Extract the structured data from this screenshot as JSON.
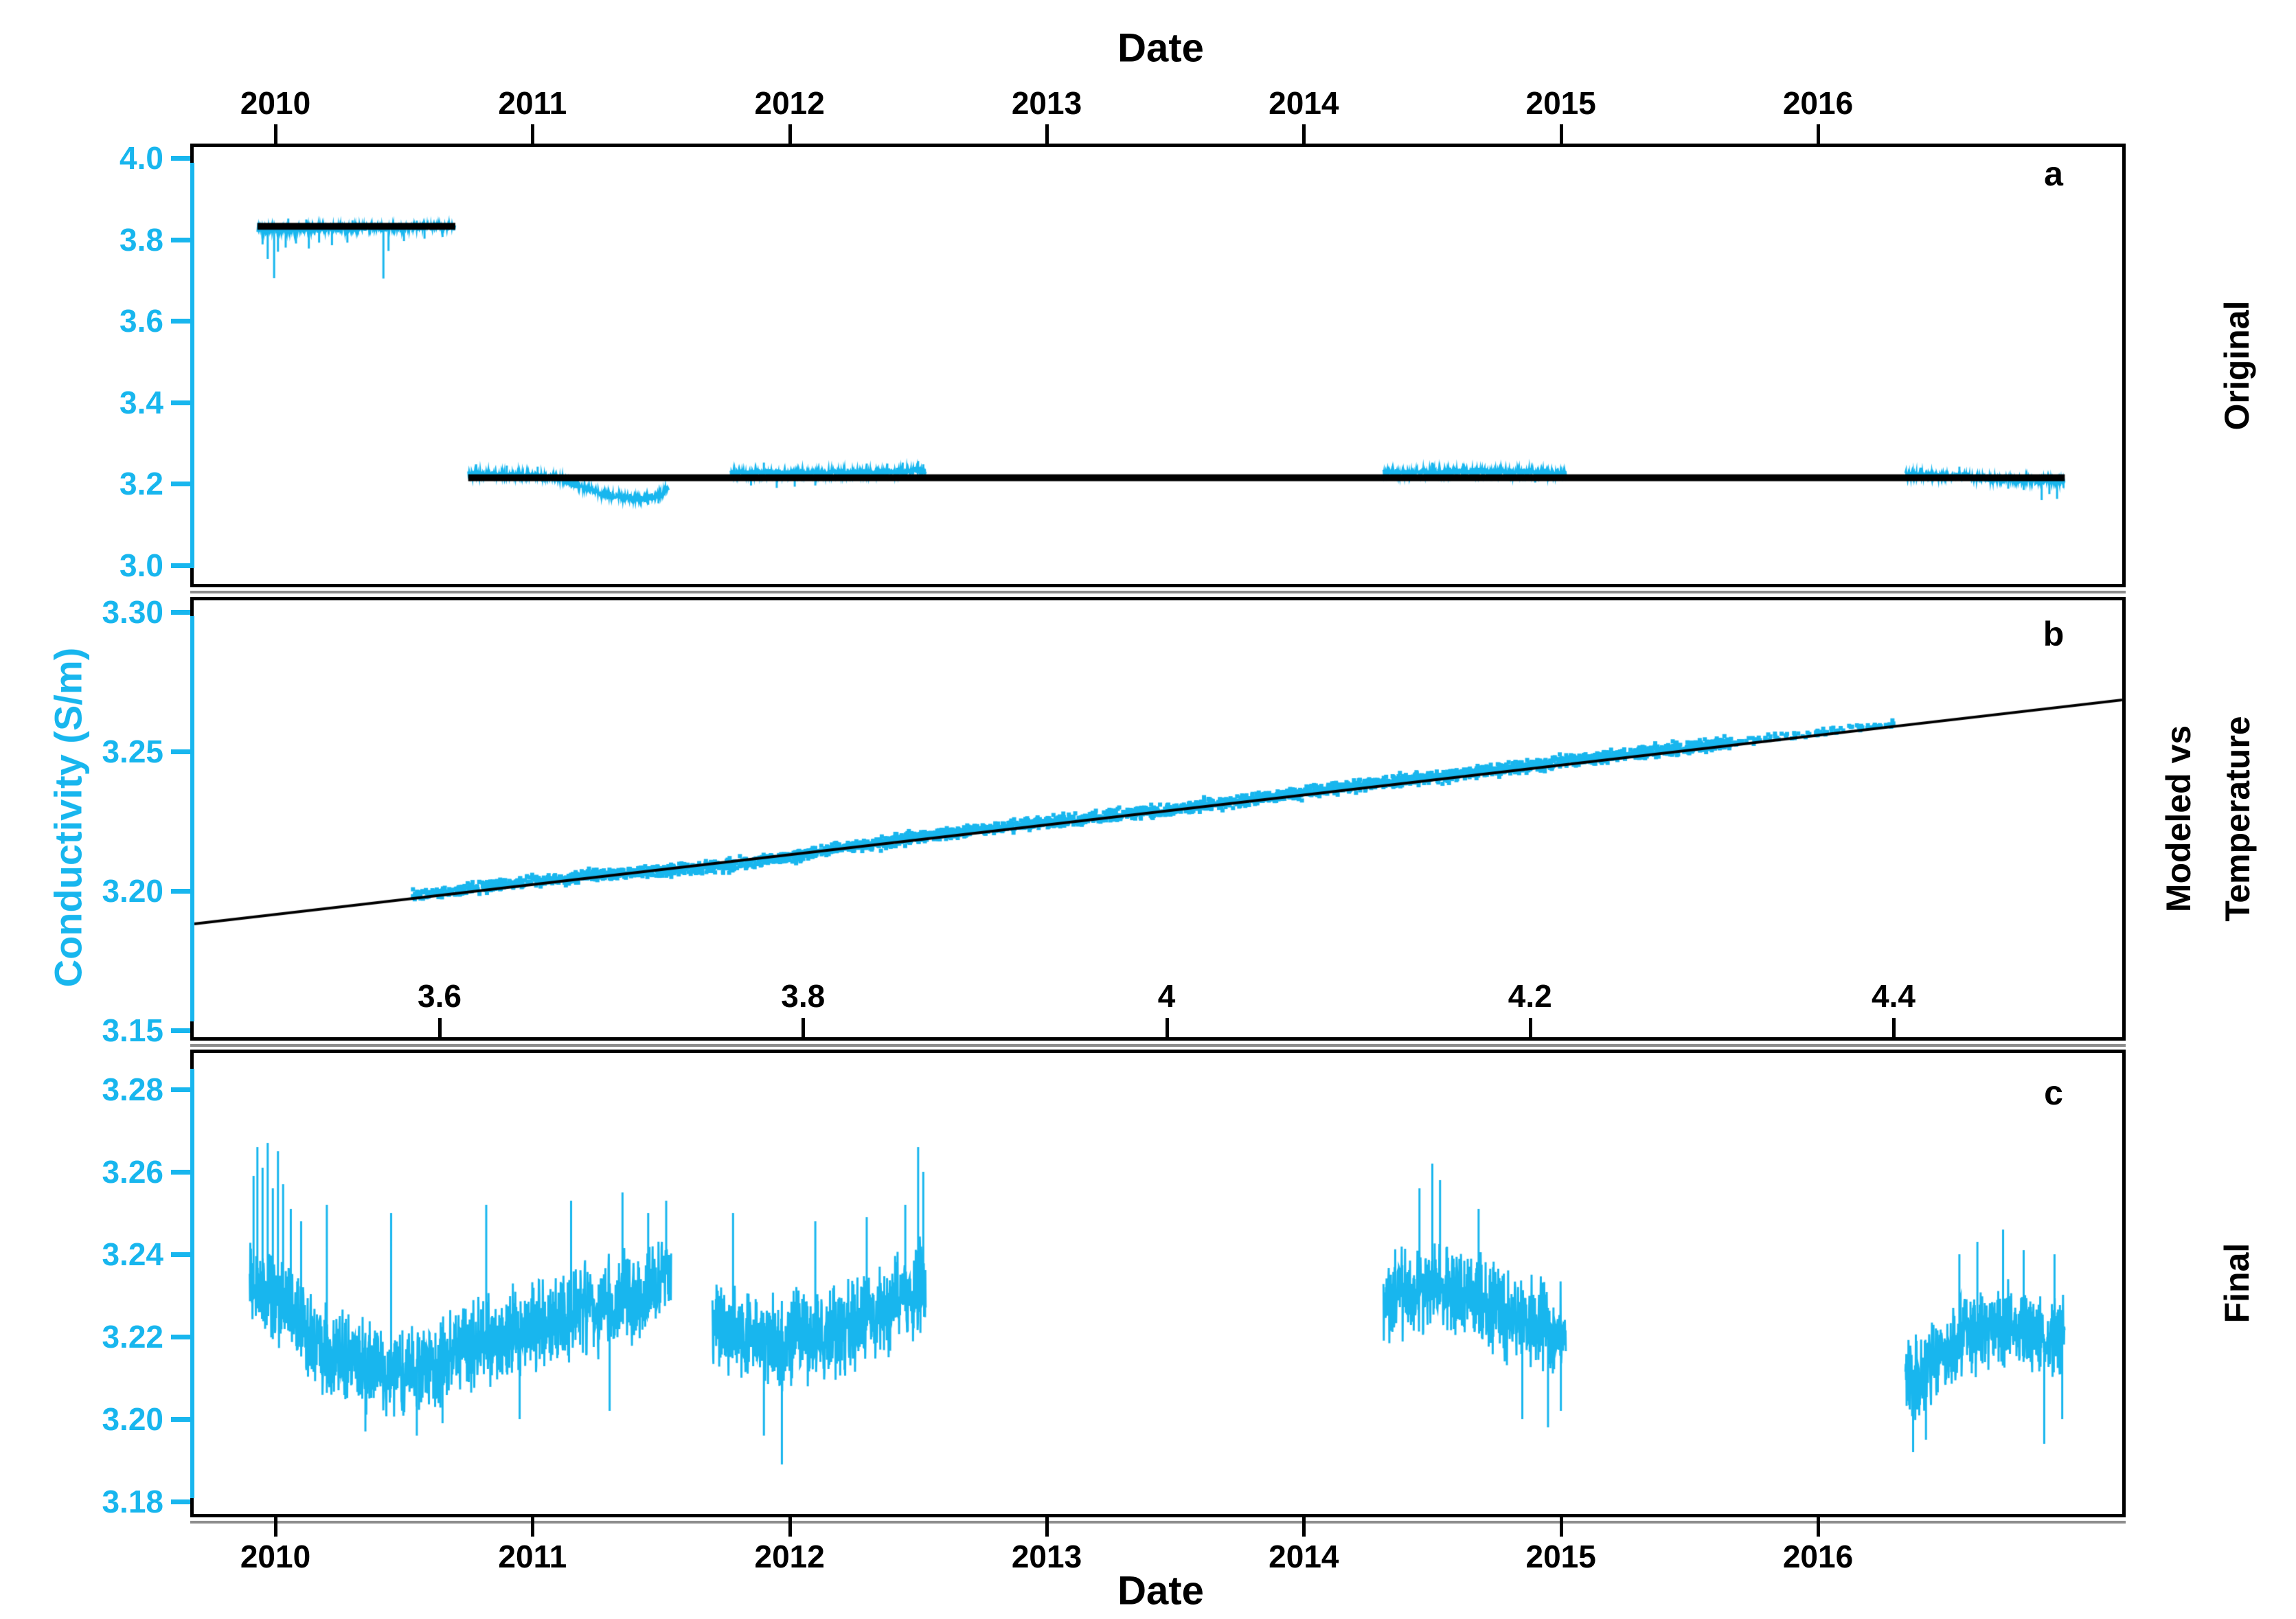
{
  "figure": {
    "title_top": "Date",
    "title_bottom": "Date",
    "ylabel": "Conductivity (S/m)",
    "colors": {
      "accent": "#18b6ee",
      "ink": "#000000",
      "shadow": "#8d8d8d",
      "background": "#ffffff"
    },
    "seed": 20100101
  },
  "chart_data": [
    {
      "id": "a",
      "letter": "a",
      "side_label": "Original",
      "type": "line",
      "x": {
        "label": "Date",
        "axis": "top",
        "v0": 2010,
        "px0": 401,
        "v1": 2016,
        "px1": 2647,
        "range": [
          2009.66,
          2017.2
        ],
        "ticks": {
          "labels": [
            "2010",
            "2011",
            "2012",
            "2013",
            "2014",
            "2015",
            "2016"
          ],
          "values": [
            2010,
            2011,
            2012,
            2013,
            2014,
            2015,
            2016
          ]
        }
      },
      "y": {
        "v0": 4.0,
        "px0": 230,
        "v1": 3.0,
        "px1": 823,
        "range": [
          2.95,
          4.035
        ],
        "ticks": {
          "labels": [
            "4.0",
            "3.8",
            "3.6",
            "3.4",
            "3.2",
            "3.0"
          ],
          "values": [
            4.0,
            3.8,
            3.6,
            3.4,
            3.2,
            3.0
          ]
        }
      },
      "clip": [
        282,
        214,
        3090,
        850
      ],
      "line_width": 10,
      "fit_lines": [
        {
          "value": 3.832,
          "t0": 2009.93,
          "t1": 2010.7
        },
        {
          "value": 3.215,
          "t0": 2010.75,
          "t1": 2016.96
        }
      ],
      "segments": [
        {
          "t0": 2009.93,
          "t1": 2010.7,
          "amp": 0.011,
          "mean": [
            [
              2009.93,
              3.824
            ],
            [
              2010.2,
              3.826
            ],
            [
              2010.5,
              3.829
            ],
            [
              2010.7,
              3.832
            ]
          ],
          "needles": [
            [
              2009.95,
              3.788
            ],
            [
              2009.97,
              3.752
            ],
            [
              2009.995,
              3.705
            ],
            [
              2010.01,
              3.77
            ],
            [
              2010.04,
              3.78
            ],
            [
              2010.05,
              3.851
            ],
            [
              2010.08,
              3.79
            ],
            [
              2010.12,
              3.849
            ],
            [
              2010.13,
              3.778
            ],
            [
              2010.17,
              3.792
            ],
            [
              2010.22,
              3.786
            ],
            [
              2010.28,
              3.792
            ],
            [
              2010.3,
              3.847
            ],
            [
              2010.42,
              3.704
            ],
            [
              2010.44,
              3.772
            ],
            [
              2010.5,
              3.796
            ],
            [
              2010.55,
              3.846
            ],
            [
              2010.58,
              3.802
            ],
            [
              2010.65,
              3.806
            ]
          ]
        },
        {
          "t0": 2010.75,
          "t1": 2011.53,
          "amp": 0.01,
          "mean": [
            [
              2010.75,
              3.224
            ],
            [
              2011.0,
              3.222
            ],
            [
              2011.1,
              3.215
            ],
            [
              2011.2,
              3.19
            ],
            [
              2011.3,
              3.172
            ],
            [
              2011.42,
              3.163
            ],
            [
              2011.5,
              3.172
            ],
            [
              2011.53,
              3.19
            ]
          ],
          "needles": [
            [
              2010.78,
              3.248
            ],
            [
              2010.9,
              3.245
            ],
            [
              2011.02,
              3.242
            ],
            [
              2011.45,
              3.149
            ],
            [
              2011.49,
              3.152
            ]
          ]
        },
        {
          "t0": 2011.77,
          "t1": 2012.53,
          "amp": 0.01,
          "mean": [
            [
              2011.77,
              3.226
            ],
            [
              2012.1,
              3.227
            ],
            [
              2012.53,
              3.232
            ]
          ],
          "needles": [
            [
              2011.85,
              3.196
            ],
            [
              2011.9,
              3.252
            ],
            [
              2011.95,
              3.19
            ],
            [
              2012.02,
              3.193
            ],
            [
              2012.1,
              3.196
            ],
            [
              2012.3,
              3.25
            ],
            [
              2012.38,
              3.25
            ],
            [
              2012.44,
              3.252
            ],
            [
              2012.5,
              3.256
            ],
            [
              2012.52,
              3.248
            ]
          ]
        },
        {
          "t0": 2014.31,
          "t1": 2015.02,
          "amp": 0.011,
          "mean": [
            [
              2014.31,
              3.227
            ],
            [
              2014.7,
              3.231
            ],
            [
              2015.02,
              3.226
            ]
          ],
          "needles": [
            [
              2014.5,
              3.252
            ],
            [
              2014.62,
              3.25
            ],
            [
              2014.9,
              3.203
            ]
          ]
        },
        {
          "t0": 2016.34,
          "t1": 2016.96,
          "amp": 0.01,
          "mean": [
            [
              2016.34,
              3.223
            ],
            [
              2016.55,
              3.22
            ],
            [
              2016.65,
              3.213
            ],
            [
              2016.78,
              3.209
            ],
            [
              2016.96,
              3.207
            ]
          ],
          "needles": [
            [
              2016.4,
              3.24
            ],
            [
              2016.55,
              3.242
            ],
            [
              2016.74,
              3.188
            ],
            [
              2016.8,
              3.185
            ],
            [
              2016.87,
              3.16
            ],
            [
              2016.9,
              3.175
            ],
            [
              2016.93,
              3.163
            ],
            [
              2016.955,
              3.19
            ]
          ]
        }
      ]
    },
    {
      "id": "b",
      "letter": "b",
      "side_label_lines": [
        "Modeled vs",
        "Temperature"
      ],
      "type": "scatter",
      "x": {
        "label": "Temperature",
        "axis": "bottom-inside",
        "v0": 3.6,
        "px0": 640,
        "v1": 4.4,
        "px1": 2757,
        "range": [
          3.46,
          4.53
        ],
        "ticks": {
          "labels": [
            "3.6",
            "3.8",
            "4",
            "4.2",
            "4.4"
          ],
          "values": [
            3.6,
            3.8,
            4,
            4.2,
            4.4
          ]
        }
      },
      "y": {
        "v0": 3.3,
        "px0": 891,
        "v1": 3.15,
        "px1": 1500,
        "range": [
          3.146,
          3.305
        ],
        "ticks": {
          "labels": [
            "3.30",
            "3.25",
            "3.20",
            "3.15"
          ],
          "values": [
            3.3,
            3.25,
            3.2,
            3.15
          ]
        }
      },
      "clip": [
        282,
        874,
        3090,
        1510
      ],
      "line_width": 4,
      "fit_line": {
        "t0": 3.465,
        "v0": 3.1882,
        "t1": 4.53,
        "v1": 3.2688
      },
      "scatter": {
        "t_min": 3.585,
        "t_max": 4.31,
        "n": 3600,
        "sigma": 0.0017,
        "density_pow": 0.88,
        "dot": 6,
        "tail": {
          "t_min": 4.31,
          "t_max": 4.4,
          "n": 90,
          "sigma": 0.0012
        },
        "wiggle": [
          [
            3.585,
            0.0008
          ],
          [
            3.63,
            0.0015
          ],
          [
            3.68,
            0.0008
          ],
          [
            3.73,
            -0.0008
          ],
          [
            3.76,
            -0.0015
          ],
          [
            3.8,
            -0.0004
          ],
          [
            3.85,
            0.0008
          ],
          [
            3.9,
            0.0012
          ],
          [
            3.95,
            0.0007
          ],
          [
            4.0,
            0.0003
          ],
          [
            4.05,
            0.0007
          ],
          [
            4.1,
            0.0012
          ],
          [
            4.15,
            0.0008
          ],
          [
            4.2,
            0.001
          ],
          [
            4.25,
            0.0012
          ],
          [
            4.31,
            0.001
          ],
          [
            4.36,
            0.0008
          ],
          [
            4.4,
            0.0012
          ]
        ]
      }
    },
    {
      "id": "c",
      "letter": "c",
      "side_label": "Final",
      "type": "line",
      "x": {
        "label": "Date",
        "axis": "bottom",
        "v0": 2010,
        "px0": 401,
        "v1": 2016,
        "px1": 2647,
        "range": [
          2009.66,
          2017.2
        ],
        "ticks": {
          "labels": [
            "2010",
            "2011",
            "2012",
            "2013",
            "2014",
            "2015",
            "2016"
          ],
          "values": [
            2010,
            2011,
            2012,
            2013,
            2014,
            2015,
            2016
          ]
        }
      },
      "y": {
        "v0": 3.28,
        "px0": 1586,
        "v1": 3.18,
        "px1": 2186,
        "range": [
          3.176,
          3.29
        ],
        "ticks": {
          "labels": [
            "3.28",
            "3.26",
            "3.24",
            "3.22",
            "3.20",
            "3.18"
          ],
          "values": [
            3.28,
            3.26,
            3.24,
            3.22,
            3.2,
            3.18
          ]
        }
      },
      "clip": [
        282,
        1533,
        3090,
        2204
      ],
      "line_width": 0,
      "fit_lines": [],
      "segments": [
        {
          "t0": 2009.9,
          "t1": 2011.54,
          "amp": 0.013,
          "mean": [
            [
              2009.9,
              3.233
            ],
            [
              2010.05,
              3.227
            ],
            [
              2010.15,
              3.219
            ],
            [
              2010.3,
              3.213
            ],
            [
              2010.5,
              3.211
            ],
            [
              2010.7,
              3.216
            ],
            [
              2010.9,
              3.221
            ],
            [
              2011.1,
              3.224
            ],
            [
              2011.3,
              3.228
            ],
            [
              2011.45,
              3.232
            ],
            [
              2011.54,
              3.236
            ]
          ],
          "needles": [
            [
              2009.915,
              3.259
            ],
            [
              2009.93,
              3.266
            ],
            [
              2009.95,
              3.261
            ],
            [
              2009.97,
              3.267
            ],
            [
              2009.99,
              3.256
            ],
            [
              2010.01,
              3.265
            ],
            [
              2010.03,
              3.257
            ],
            [
              2010.06,
              3.251
            ],
            [
              2010.1,
              3.248
            ],
            [
              2010.2,
              3.252
            ],
            [
              2010.35,
              3.197
            ],
            [
              2010.45,
              3.25
            ],
            [
              2010.55,
              3.196
            ],
            [
              2010.65,
              3.199
            ],
            [
              2010.82,
              3.252
            ],
            [
              2010.95,
              3.2
            ],
            [
              2011.15,
              3.253
            ],
            [
              2011.3,
              3.202
            ],
            [
              2011.35,
              3.255
            ],
            [
              2011.45,
              3.25
            ],
            [
              2011.52,
              3.253
            ]
          ]
        },
        {
          "t0": 2011.7,
          "t1": 2012.53,
          "amp": 0.013,
          "mean": [
            [
              2011.7,
              3.223
            ],
            [
              2011.95,
              3.218
            ],
            [
              2012.2,
              3.222
            ],
            [
              2012.4,
              3.227
            ],
            [
              2012.53,
              3.233
            ]
          ],
          "needles": [
            [
              2011.78,
              3.25
            ],
            [
              2011.9,
              3.196
            ],
            [
              2011.97,
              3.189
            ],
            [
              2012.1,
              3.248
            ],
            [
              2012.3,
              3.249
            ],
            [
              2012.45,
              3.252
            ],
            [
              2012.5,
              3.266
            ],
            [
              2012.52,
              3.26
            ]
          ]
        },
        {
          "t0": 2014.31,
          "t1": 2015.02,
          "amp": 0.013,
          "mean": [
            [
              2014.31,
              3.229
            ],
            [
              2014.55,
              3.232
            ],
            [
              2014.75,
              3.226
            ],
            [
              2014.9,
              3.224
            ],
            [
              2015.02,
              3.221
            ]
          ],
          "needles": [
            [
              2014.45,
              3.256
            ],
            [
              2014.5,
              3.262
            ],
            [
              2014.53,
              3.258
            ],
            [
              2014.68,
              3.251
            ],
            [
              2014.85,
              3.2
            ],
            [
              2014.95,
              3.198
            ],
            [
              2015.0,
              3.202
            ]
          ]
        },
        {
          "t0": 2016.34,
          "t1": 2016.96,
          "amp": 0.012,
          "mean": [
            [
              2016.34,
              3.209
            ],
            [
              2016.45,
              3.214
            ],
            [
              2016.6,
              3.221
            ],
            [
              2016.75,
              3.223
            ],
            [
              2016.85,
              3.219
            ],
            [
              2016.96,
              3.221
            ]
          ],
          "needles": [
            [
              2016.37,
              3.192
            ],
            [
              2016.42,
              3.195
            ],
            [
              2016.55,
              3.24
            ],
            [
              2016.62,
              3.243
            ],
            [
              2016.72,
              3.246
            ],
            [
              2016.8,
              3.241
            ],
            [
              2016.88,
              3.194
            ],
            [
              2016.92,
              3.24
            ],
            [
              2016.95,
              3.2
            ]
          ]
        }
      ]
    }
  ]
}
